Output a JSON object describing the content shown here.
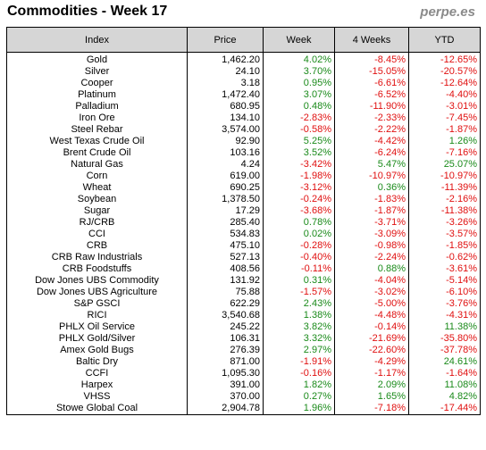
{
  "header": {
    "title": "Commodities - Week 17",
    "brand": "perpe.es"
  },
  "columns": [
    "Index",
    "Price",
    "Week",
    "4 Weeks",
    "YTD"
  ],
  "rows": [
    [
      "Gold",
      "1,462.20",
      "4.02%",
      "-8.45%",
      "-12.65%"
    ],
    [
      "Silver",
      "24.10",
      "3.70%",
      "-15.05%",
      "-20.57%"
    ],
    [
      "Cooper",
      "3.18",
      "0.95%",
      "-6.61%",
      "-12.64%"
    ],
    [
      "Platinum",
      "1,472.40",
      "3.07%",
      "-6.52%",
      "-4.40%"
    ],
    [
      "Palladium",
      "680.95",
      "0.48%",
      "-11.90%",
      "-3.01%"
    ],
    [
      "Iron Ore",
      "134.10",
      "-2.83%",
      "-2.33%",
      "-7.45%"
    ],
    [
      "Steel Rebar",
      "3,574.00",
      "-0.58%",
      "-2.22%",
      "-1.87%"
    ],
    [
      "West Texas Crude Oil",
      "92.90",
      "5.25%",
      "-4.42%",
      "1.26%"
    ],
    [
      "Brent Crude Oil",
      "103.16",
      "3.52%",
      "-6.24%",
      "-7.16%"
    ],
    [
      "Natural Gas",
      "4.24",
      "-3.42%",
      "5.47%",
      "25.07%"
    ],
    [
      "Corn",
      "619.00",
      "-1.98%",
      "-10.97%",
      "-10.97%"
    ],
    [
      "Wheat",
      "690.25",
      "-3.12%",
      "0.36%",
      "-11.39%"
    ],
    [
      "Soybean",
      "1,378.50",
      "-0.24%",
      "-1.83%",
      "-2.16%"
    ],
    [
      "Sugar",
      "17.29",
      "-3.68%",
      "-1.87%",
      "-11.38%"
    ],
    [
      "RJ/CRB",
      "285.40",
      "0.78%",
      "-3.71%",
      "-3.26%"
    ],
    [
      "CCI",
      "534.83",
      "0.02%",
      "-3.09%",
      "-3.57%"
    ],
    [
      "CRB",
      "475.10",
      "-0.28%",
      "-0.98%",
      "-1.85%"
    ],
    [
      "CRB Raw Industrials",
      "527.13",
      "-0.40%",
      "-2.24%",
      "-0.62%"
    ],
    [
      "CRB Foodstuffs",
      "408.56",
      "-0.11%",
      "0.88%",
      "-3.61%"
    ],
    [
      "Dow Jones UBS Commodity",
      "131.92",
      "0.31%",
      "-4.04%",
      "-5.14%"
    ],
    [
      "Dow Jones UBS Agriculture",
      "75.88",
      "-1.57%",
      "-3.02%",
      "-6.10%"
    ],
    [
      "S&P GSCI",
      "622.29",
      "2.43%",
      "-5.00%",
      "-3.76%"
    ],
    [
      "RICI",
      "3,540.68",
      "1.38%",
      "-4.48%",
      "-4.31%"
    ],
    [
      "PHLX Oil Service",
      "245.22",
      "3.82%",
      "-0.14%",
      "11.38%"
    ],
    [
      "PHLX Gold/Silver",
      "106.31",
      "3.32%",
      "-21.69%",
      "-35.80%"
    ],
    [
      "Amex Gold Bugs",
      "276.39",
      "2.97%",
      "-22.60%",
      "-37.78%"
    ],
    [
      "Baltic Dry",
      "871.00",
      "-1.91%",
      "-4.29%",
      "24.61%"
    ],
    [
      "CCFI",
      "1,095.30",
      "-0.16%",
      "-1.17%",
      "-1.64%"
    ],
    [
      "Harpex",
      "391.00",
      "1.82%",
      "2.09%",
      "11.08%"
    ],
    [
      "VHSS",
      "370.00",
      "0.27%",
      "1.65%",
      "4.82%"
    ],
    [
      "Stowe Global Coal",
      "2,904.78",
      "1.96%",
      "-7.18%",
      "-17.44%"
    ]
  ],
  "colors": {
    "positive": "#1a8a1a",
    "negative": "#e01010",
    "header_bg": "#d6d6d6",
    "brand": "#8a8a8a"
  }
}
